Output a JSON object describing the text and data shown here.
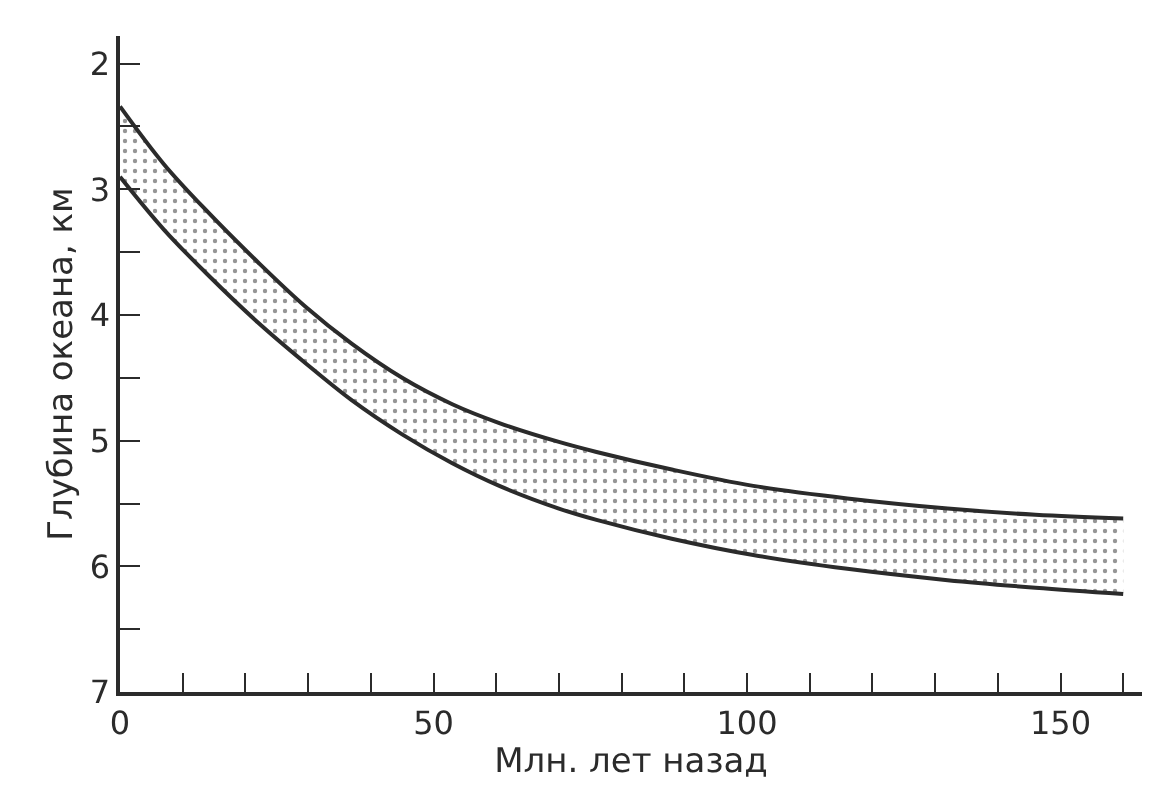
{
  "chart_data": {
    "type": "line",
    "xlabel": "Млн. лет назад",
    "ylabel": "Глубина океана, км",
    "series": [
      {
        "color": "#2b2b2b",
        "x": [
          0,
          7,
          14,
          22,
          29.5,
          37,
          45,
          53,
          60.5,
          70,
          76,
          88,
          101,
          116,
          132,
          146,
          160
        ],
        "values": [
          2.34,
          2.8,
          3.18,
          3.58,
          3.93,
          4.23,
          4.5,
          4.71,
          4.86,
          5.01,
          5.09,
          5.23,
          5.36,
          5.46,
          5.54,
          5.59,
          5.62
        ],
        "lower": [
          2.34,
          2.8,
          3.18,
          3.58,
          3.93,
          4.23,
          4.5,
          4.71,
          4.86,
          5.01,
          5.09,
          5.23,
          5.36,
          5.46,
          5.54,
          5.59,
          5.62
        ],
        "upper": [
          2.9,
          3.32,
          3.68,
          4.06,
          4.38,
          4.68,
          4.95,
          5.18,
          5.36,
          5.54,
          5.63,
          5.78,
          5.91,
          6.02,
          6.11,
          6.17,
          6.22
        ]
      },
      {
        "color": "#2b2b2b",
        "x": [
          0,
          7,
          14,
          22,
          29.5,
          37,
          45,
          53,
          60.5,
          70,
          76,
          88,
          101,
          116,
          132,
          146,
          160
        ],
        "values": [
          2.9,
          3.32,
          3.68,
          4.06,
          4.38,
          4.68,
          4.95,
          5.18,
          5.36,
          5.54,
          5.63,
          5.78,
          5.91,
          6.02,
          6.11,
          6.17,
          6.22
        ]
      }
    ],
    "xlim": [
      0,
      163
    ],
    "ylim": [
      7,
      1.78
    ],
    "xticks": [
      0,
      {
        "value": 10,
        "label": null
      },
      {
        "value": 20,
        "label": null
      },
      {
        "value": 30,
        "label": null
      },
      {
        "value": 40,
        "label": null
      },
      50,
      {
        "value": 60,
        "label": null
      },
      {
        "value": 70,
        "label": null
      },
      {
        "value": 80,
        "label": null
      },
      {
        "value": 90,
        "label": null
      },
      100,
      {
        "value": 110,
        "label": null
      },
      {
        "value": 120,
        "label": null
      },
      {
        "value": 130,
        "label": null
      },
      {
        "value": 140,
        "label": null
      },
      150,
      {
        "value": 160,
        "label": null
      }
    ],
    "yticks": [
      2,
      {
        "value": 2.5,
        "label": null
      },
      3,
      {
        "value": 3.5,
        "label": null
      },
      4,
      {
        "value": 4.5,
        "label": null
      },
      5,
      {
        "value": 5.5,
        "label": null
      },
      6,
      {
        "value": 6.5,
        "label": null
      },
      7
    ],
    "marker": "none",
    "line_style": "solid"
  }
}
